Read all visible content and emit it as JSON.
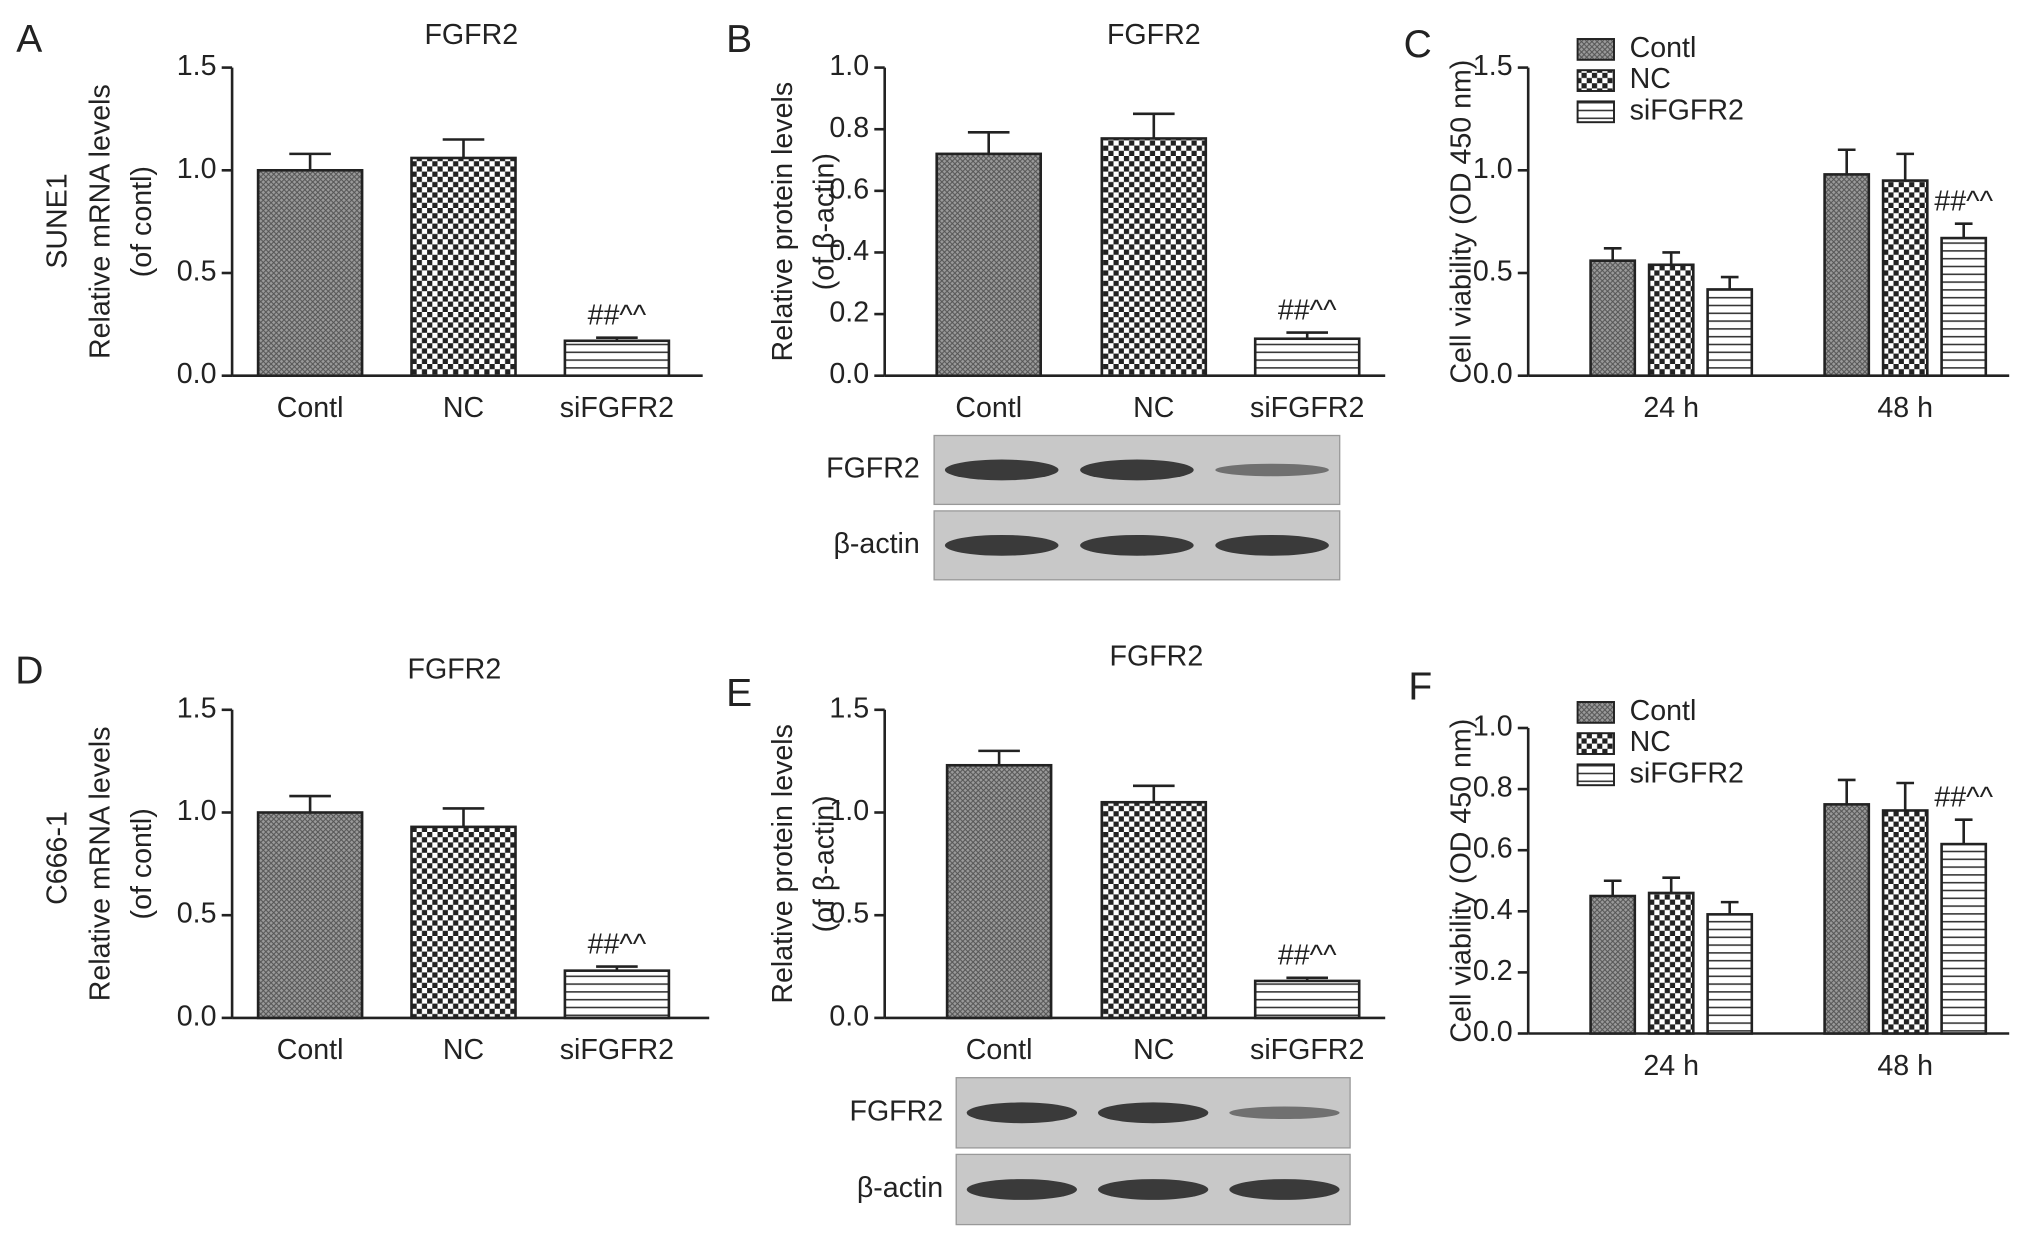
{
  "chart_data": [
    {
      "type": "bar",
      "panel": "A",
      "title": "FGFR2",
      "row_label": "SUNE1",
      "ylabel": [
        "Relative mRNA levels",
        "(of contl)"
      ],
      "categories": [
        "Contl",
        "NC",
        "siFGFR2"
      ],
      "values": [
        1.0,
        1.06,
        0.17
      ],
      "errors": [
        0.08,
        0.09,
        0.015
      ],
      "patterns": [
        "crosshatch",
        "checker",
        "stripes"
      ],
      "annotations": [
        null,
        null,
        "##^^"
      ],
      "ylim": [
        0,
        1.5
      ],
      "yticks": [
        {
          "value": 0,
          "label": "0.0"
        },
        0.5,
        {
          "value": 1,
          "label": "1.0"
        },
        1.5
      ]
    },
    {
      "type": "bar",
      "panel": "B",
      "title": "FGFR2",
      "ylabel": [
        "Relative protein levels",
        "(of β-actin)"
      ],
      "categories": [
        "Contl",
        "NC",
        "siFGFR2"
      ],
      "values": [
        0.72,
        0.77,
        0.12
      ],
      "errors": [
        0.07,
        0.08,
        0.02
      ],
      "patterns": [
        "crosshatch",
        "checker",
        "stripes"
      ],
      "annotations": [
        null,
        null,
        "##^^"
      ],
      "ylim": [
        0,
        1
      ],
      "yticks": [
        {
          "value": 0,
          "label": "0.0"
        },
        0.2,
        0.4,
        0.6,
        0.8,
        {
          "value": 1,
          "label": "1.0"
        }
      ],
      "blot_labels": [
        "FGFR2",
        "β-actin"
      ]
    },
    {
      "type": "grouped_bar",
      "panel": "C",
      "ylabel": [
        "Cell viability (OD 450 nm)"
      ],
      "categories": [
        "24 h",
        "48 h"
      ],
      "series": [
        {
          "name": "Contl",
          "pattern": "crosshatch",
          "values": [
            0.56,
            0.98
          ],
          "errors": [
            0.06,
            0.12
          ],
          "annotations": [
            null,
            null
          ]
        },
        {
          "name": "NC",
          "pattern": "checker",
          "values": [
            0.54,
            0.95
          ],
          "errors": [
            0.06,
            0.13
          ],
          "annotations": [
            null,
            null
          ]
        },
        {
          "name": "siFGFR2",
          "pattern": "stripes",
          "values": [
            0.42,
            0.67
          ],
          "errors": [
            0.06,
            0.07
          ],
          "annotations": [
            null,
            "##^^"
          ]
        }
      ],
      "ylim": [
        0,
        1.5
      ],
      "yticks": [
        {
          "value": 0,
          "label": "0.0"
        },
        0.5,
        {
          "value": 1,
          "label": "1.0"
        },
        1.5
      ]
    },
    {
      "type": "bar",
      "panel": "D",
      "title": "FGFR2",
      "row_label": "C666-1",
      "ylabel": [
        "Relative mRNA levels",
        "(of contl)"
      ],
      "categories": [
        "Contl",
        "NC",
        "siFGFR2"
      ],
      "values": [
        1.0,
        0.93,
        0.23
      ],
      "errors": [
        0.08,
        0.09,
        0.02
      ],
      "patterns": [
        "crosshatch",
        "checker",
        "stripes"
      ],
      "annotations": [
        null,
        null,
        "##^^"
      ],
      "ylim": [
        0,
        1.5
      ],
      "yticks": [
        {
          "value": 0,
          "label": "0.0"
        },
        0.5,
        {
          "value": 1,
          "label": "1.0"
        },
        1.5
      ]
    },
    {
      "type": "bar",
      "panel": "E",
      "title": "FGFR2",
      "ylabel": [
        "Relative protein levels",
        "(of β-actin)"
      ],
      "categories": [
        "Contl",
        "NC",
        "siFGFR2"
      ],
      "values": [
        1.23,
        1.05,
        0.18
      ],
      "errors": [
        0.07,
        0.08,
        0.015
      ],
      "patterns": [
        "crosshatch",
        "checker",
        "stripes"
      ],
      "annotations": [
        null,
        null,
        "##^^"
      ],
      "ylim": [
        0,
        1.5
      ],
      "yticks": [
        {
          "value": 0,
          "label": "0.0"
        },
        0.5,
        {
          "value": 1,
          "label": "1.0"
        },
        1.5
      ],
      "blot_labels": [
        "FGFR2",
        "β-actin"
      ]
    },
    {
      "type": "grouped_bar",
      "panel": "F",
      "ylabel": [
        "Cell viability (OD 450 nm)"
      ],
      "categories": [
        "24 h",
        "48 h"
      ],
      "series": [
        {
          "name": "Contl",
          "pattern": "crosshatch",
          "values": [
            0.45,
            0.75
          ],
          "errors": [
            0.05,
            0.08
          ],
          "annotations": [
            null,
            null
          ]
        },
        {
          "name": "NC",
          "pattern": "checker",
          "values": [
            0.46,
            0.73
          ],
          "errors": [
            0.05,
            0.09
          ],
          "annotations": [
            null,
            null
          ]
        },
        {
          "name": "siFGFR2",
          "pattern": "stripes",
          "values": [
            0.39,
            0.62
          ],
          "errors": [
            0.04,
            0.08
          ],
          "annotations": [
            null,
            "##^^"
          ]
        }
      ],
      "ylim": [
        0,
        1
      ],
      "yticks": [
        {
          "value": 0,
          "label": "0.0"
        },
        0.2,
        0.4,
        0.6,
        0.8,
        {
          "value": 1,
          "label": "1.0"
        }
      ]
    }
  ]
}
